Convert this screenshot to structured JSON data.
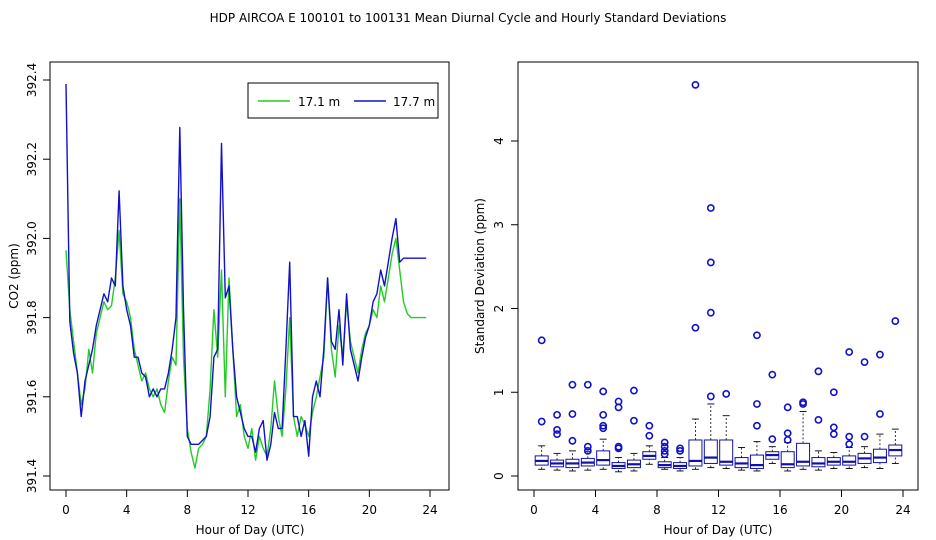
{
  "title": "HDP   AIRCOA E   100101 to 100131   Mean Diurnal Cycle and Hourly Standard Deviations",
  "colors": {
    "green": "#22cc22",
    "blue": "#1111cc",
    "box": "#1111aa"
  },
  "chart_data": [
    {
      "type": "line",
      "xlabel": "Hour of Day (UTC)",
      "ylabel": "CO2 (ppm)",
      "xlim": [
        0,
        24
      ],
      "ylim": [
        391.4,
        392.4
      ],
      "xticks": [
        "0",
        "4",
        "8",
        "12",
        "16",
        "20",
        "24"
      ],
      "yticks": [
        "391.4",
        "391.6",
        "391.8",
        "392.0",
        "392.2",
        "392.4"
      ],
      "legend_position": "top-right",
      "x": [
        0.0,
        0.25,
        0.5,
        0.75,
        1.0,
        1.25,
        1.5,
        1.75,
        2.0,
        2.25,
        2.5,
        2.75,
        3.0,
        3.25,
        3.5,
        3.75,
        4.0,
        4.25,
        4.5,
        4.75,
        5.0,
        5.25,
        5.5,
        5.75,
        6.0,
        6.25,
        6.5,
        6.75,
        7.0,
        7.25,
        7.5,
        7.75,
        8.0,
        8.25,
        8.5,
        8.75,
        9.0,
        9.25,
        9.5,
        9.75,
        10.0,
        10.25,
        10.5,
        10.75,
        11.0,
        11.25,
        11.5,
        11.75,
        12.0,
        12.25,
        12.5,
        12.75,
        13.0,
        13.25,
        13.5,
        13.75,
        14.0,
        14.25,
        14.5,
        14.75,
        15.0,
        15.25,
        15.5,
        15.75,
        16.0,
        16.25,
        16.5,
        16.75,
        17.0,
        17.25,
        17.5,
        17.75,
        18.0,
        18.25,
        18.5,
        18.75,
        19.0,
        19.25,
        19.5,
        19.75,
        20.0,
        20.25,
        20.5,
        20.75,
        21.0,
        21.25,
        21.5,
        21.75,
        22.0,
        22.25,
        22.5,
        22.75,
        23.0,
        23.25,
        23.5,
        23.75
      ],
      "series": [
        {
          "name": "17.1 m",
          "color": "#22cc22",
          "values": [
            391.97,
            391.82,
            391.74,
            391.66,
            391.58,
            391.62,
            391.72,
            391.66,
            391.76,
            391.8,
            391.84,
            391.82,
            391.83,
            391.9,
            392.02,
            391.86,
            391.84,
            391.8,
            391.72,
            391.68,
            391.64,
            391.66,
            391.62,
            391.6,
            391.62,
            391.58,
            391.56,
            391.64,
            391.7,
            391.68,
            392.1,
            391.7,
            391.52,
            391.46,
            391.42,
            391.47,
            391.48,
            391.5,
            391.62,
            391.82,
            391.7,
            391.92,
            391.6,
            391.9,
            391.72,
            391.55,
            391.58,
            391.5,
            391.47,
            391.52,
            391.44,
            391.5,
            391.47,
            391.45,
            391.52,
            391.64,
            391.55,
            391.5,
            391.62,
            391.8,
            391.55,
            391.5,
            391.55,
            391.53,
            391.5,
            391.56,
            391.6,
            391.65,
            391.7,
            391.9,
            391.72,
            391.65,
            391.78,
            391.7,
            391.84,
            391.74,
            391.7,
            391.66,
            391.72,
            391.76,
            391.78,
            391.82,
            391.8,
            391.88,
            391.84,
            391.9,
            391.96,
            392.0,
            391.92,
            391.84,
            391.81,
            391.8,
            391.8,
            391.8,
            391.8,
            391.8
          ]
        },
        {
          "name": "17.7 m",
          "color": "#1111cc",
          "values": [
            392.39,
            391.79,
            391.71,
            391.66,
            391.55,
            391.64,
            391.68,
            391.72,
            391.78,
            391.82,
            391.86,
            391.84,
            391.9,
            391.88,
            392.12,
            391.88,
            391.82,
            391.78,
            391.7,
            391.7,
            391.66,
            391.65,
            391.6,
            391.62,
            391.6,
            391.62,
            391.62,
            391.66,
            391.72,
            391.8,
            392.28,
            391.82,
            391.5,
            391.48,
            391.48,
            391.48,
            391.49,
            391.5,
            391.55,
            391.7,
            391.72,
            392.24,
            391.85,
            391.88,
            391.72,
            391.6,
            391.56,
            391.52,
            391.5,
            391.5,
            391.46,
            391.52,
            391.54,
            391.44,
            391.48,
            391.56,
            391.52,
            391.52,
            391.72,
            391.94,
            391.55,
            391.55,
            391.5,
            391.54,
            391.45,
            391.6,
            391.64,
            391.6,
            391.72,
            391.9,
            391.74,
            391.72,
            391.82,
            391.68,
            391.86,
            391.72,
            391.68,
            391.64,
            391.7,
            391.75,
            391.78,
            391.84,
            391.86,
            391.92,
            391.88,
            391.94,
            392.0,
            392.05,
            391.94,
            391.95,
            391.95,
            391.95,
            391.95,
            391.95,
            391.95,
            391.95
          ]
        }
      ]
    },
    {
      "type": "box",
      "xlabel": "Hour of Day (UTC)",
      "ylabel": "Standard Deviation (ppm)",
      "xlim": [
        0,
        24
      ],
      "ylim": [
        0,
        4.8
      ],
      "xticks": [
        "0",
        "4",
        "8",
        "12",
        "16",
        "20",
        "24"
      ],
      "yticks": [
        "0",
        "1",
        "2",
        "3",
        "4"
      ],
      "boxes": [
        {
          "x": 0.5,
          "whisker_low": 0.08,
          "q1": 0.13,
          "median": 0.18,
          "q3": 0.24,
          "whisker_high": 0.36,
          "outliers": [
            0.65,
            1.62
          ]
        },
        {
          "x": 1.5,
          "whisker_low": 0.07,
          "q1": 0.11,
          "median": 0.15,
          "q3": 0.19,
          "whisker_high": 0.27,
          "outliers": [
            0.5,
            0.55,
            0.73
          ]
        },
        {
          "x": 2.5,
          "whisker_low": 0.06,
          "q1": 0.1,
          "median": 0.15,
          "q3": 0.2,
          "whisker_high": 0.3,
          "outliers": [
            0.42,
            0.74,
            1.09
          ]
        },
        {
          "x": 3.5,
          "whisker_low": 0.07,
          "q1": 0.12,
          "median": 0.16,
          "q3": 0.21,
          "whisker_high": 0.29,
          "outliers": [
            0.3,
            0.35,
            1.09
          ]
        },
        {
          "x": 4.5,
          "whisker_low": 0.08,
          "q1": 0.13,
          "median": 0.19,
          "q3": 0.3,
          "whisker_high": 0.44,
          "outliers": [
            0.57,
            0.6,
            0.73,
            1.01
          ]
        },
        {
          "x": 5.5,
          "whisker_low": 0.05,
          "q1": 0.09,
          "median": 0.12,
          "q3": 0.16,
          "whisker_high": 0.22,
          "outliers": [
            0.33,
            0.35,
            0.82,
            0.89
          ]
        },
        {
          "x": 6.5,
          "whisker_low": 0.06,
          "q1": 0.1,
          "median": 0.14,
          "q3": 0.19,
          "whisker_high": 0.27,
          "outliers": [
            0.66,
            1.02
          ]
        },
        {
          "x": 7.5,
          "whisker_low": 0.14,
          "q1": 0.2,
          "median": 0.24,
          "q3": 0.29,
          "whisker_high": 0.36,
          "outliers": [
            0.48,
            0.6
          ]
        },
        {
          "x": 8.5,
          "whisker_low": 0.08,
          "q1": 0.1,
          "median": 0.13,
          "q3": 0.17,
          "whisker_high": 0.22,
          "outliers": [
            0.26,
            0.3,
            0.35,
            0.4
          ]
        },
        {
          "x": 9.5,
          "whisker_low": 0.06,
          "q1": 0.09,
          "median": 0.12,
          "q3": 0.16,
          "whisker_high": 0.22,
          "outliers": [
            0.3,
            0.33
          ]
        },
        {
          "x": 10.5,
          "whisker_low": 0.08,
          "q1": 0.12,
          "median": 0.18,
          "q3": 0.43,
          "whisker_high": 0.68,
          "outliers": [
            1.77,
            4.67
          ]
        },
        {
          "x": 11.5,
          "whisker_low": 0.1,
          "q1": 0.15,
          "median": 0.22,
          "q3": 0.43,
          "whisker_high": 0.86,
          "outliers": [
            0.95,
            1.95,
            2.55,
            3.2
          ]
        },
        {
          "x": 12.5,
          "whisker_low": 0.09,
          "q1": 0.13,
          "median": 0.17,
          "q3": 0.43,
          "whisker_high": 0.72,
          "outliers": [
            0.98
          ]
        },
        {
          "x": 13.5,
          "whisker_low": 0.07,
          "q1": 0.1,
          "median": 0.15,
          "q3": 0.22,
          "whisker_high": 0.34,
          "outliers": []
        },
        {
          "x": 14.5,
          "whisker_low": 0.06,
          "q1": 0.09,
          "median": 0.13,
          "q3": 0.25,
          "whisker_high": 0.41,
          "outliers": [
            0.6,
            0.86,
            1.68
          ]
        },
        {
          "x": 15.5,
          "whisker_low": 0.15,
          "q1": 0.2,
          "median": 0.25,
          "q3": 0.29,
          "whisker_high": 0.35,
          "outliers": [
            0.44,
            1.21
          ]
        },
        {
          "x": 16.5,
          "whisker_low": 0.06,
          "q1": 0.1,
          "median": 0.14,
          "q3": 0.29,
          "whisker_high": 0.4,
          "outliers": [
            0.43,
            0.51,
            0.82
          ]
        },
        {
          "x": 17.5,
          "whisker_low": 0.08,
          "q1": 0.12,
          "median": 0.17,
          "q3": 0.39,
          "whisker_high": 0.77,
          "outliers": [
            0.86,
            0.88
          ]
        },
        {
          "x": 18.5,
          "whisker_low": 0.07,
          "q1": 0.11,
          "median": 0.15,
          "q3": 0.22,
          "whisker_high": 0.3,
          "outliers": [
            0.67,
            1.25
          ]
        },
        {
          "x": 19.5,
          "whisker_low": 0.09,
          "q1": 0.13,
          "median": 0.17,
          "q3": 0.22,
          "whisker_high": 0.28,
          "outliers": [
            0.5,
            0.58,
            1.0
          ]
        },
        {
          "x": 20.5,
          "whisker_low": 0.09,
          "q1": 0.13,
          "median": 0.17,
          "q3": 0.24,
          "whisker_high": 0.34,
          "outliers": [
            0.38,
            0.47,
            1.48
          ]
        },
        {
          "x": 21.5,
          "whisker_low": 0.1,
          "q1": 0.15,
          "median": 0.21,
          "q3": 0.27,
          "whisker_high": 0.35,
          "outliers": [
            0.47,
            1.36
          ]
        },
        {
          "x": 22.5,
          "whisker_low": 0.09,
          "q1": 0.16,
          "median": 0.22,
          "q3": 0.32,
          "whisker_high": 0.5,
          "outliers": [
            0.74,
            1.45
          ]
        },
        {
          "x": 23.5,
          "whisker_low": 0.15,
          "q1": 0.24,
          "median": 0.31,
          "q3": 0.37,
          "whisker_high": 0.56,
          "outliers": [
            1.85
          ]
        }
      ]
    }
  ]
}
